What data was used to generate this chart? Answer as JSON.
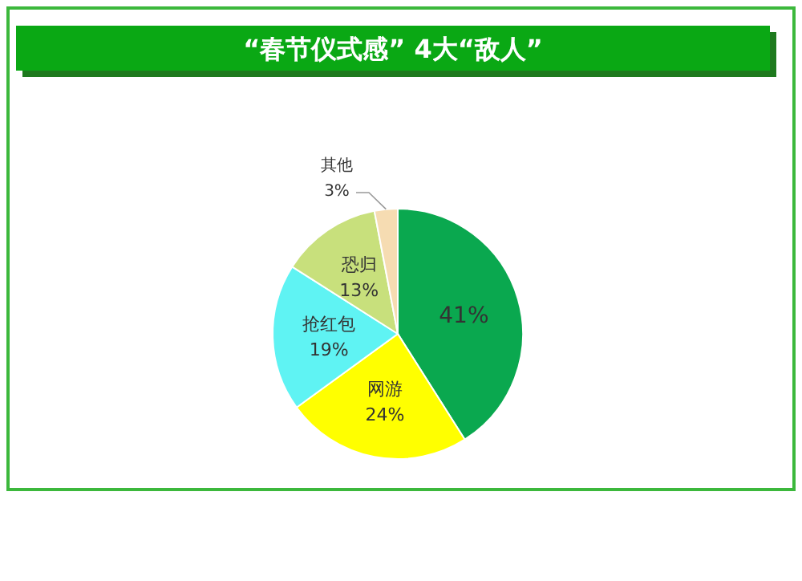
{
  "chart_data": {
    "type": "pie",
    "title": "“春节仪式感” 4大“敌人”",
    "categories": [
      null,
      "网游",
      "抢红包",
      "恐归",
      "其他"
    ],
    "values": [
      41,
      24,
      19,
      13,
      3
    ],
    "value_labels": [
      "41%",
      "24%",
      "19%",
      "13%",
      "3%"
    ],
    "colors": [
      "#0aa84f",
      "#ffff00",
      "#5ff3f3",
      "#c8e07c",
      "#f6dcb2"
    ]
  }
}
